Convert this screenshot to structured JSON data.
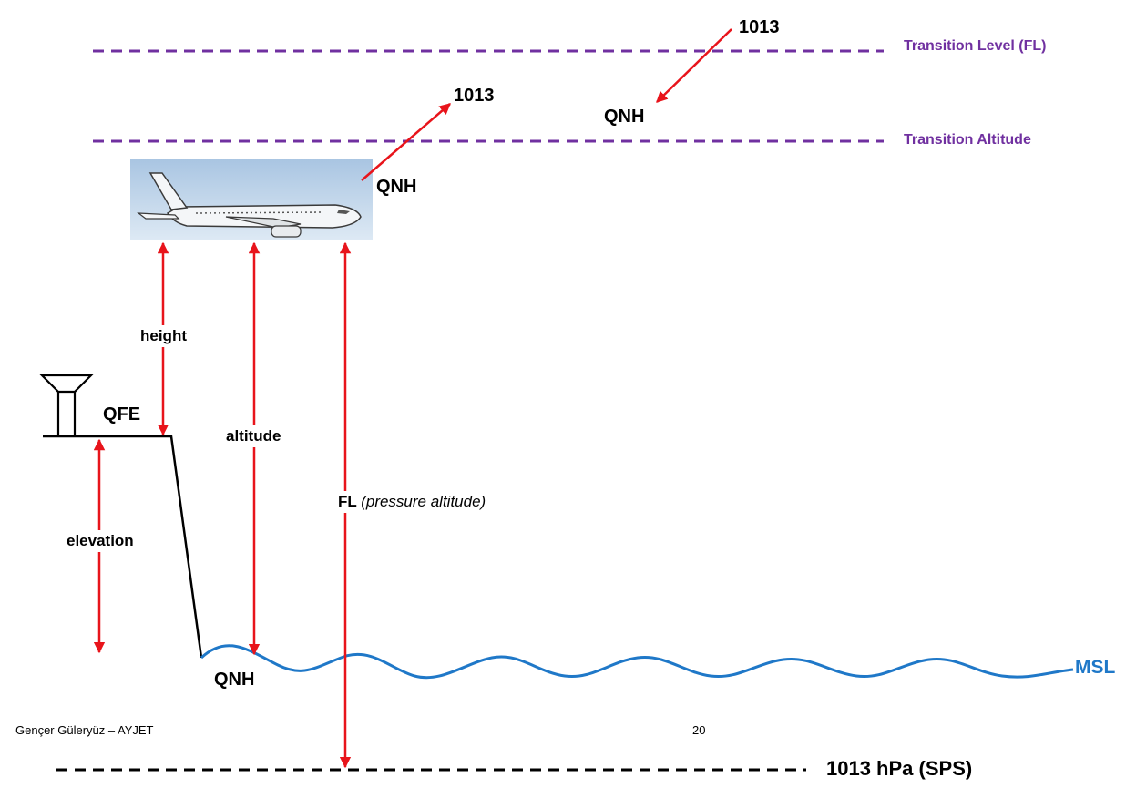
{
  "labels": {
    "transition_level": "Transition Level  (FL)",
    "transition_altitude": "Transition Altitude",
    "upper_1013": "1013",
    "upper_qnh": "QNH",
    "mid_1013": "1013",
    "aircraft_qnh": "QNH",
    "height": "height",
    "qfe": "QFE",
    "altitude": "altitude",
    "elevation": "elevation",
    "fl_abbrev": "FL",
    "fl_desc": "(pressure altitude)",
    "ground_qnh": "QNH",
    "msl": "MSL",
    "sps": "1013 hPa (SPS)"
  },
  "footer": {
    "author": "Gençer Güleryüz  –  AYJET",
    "page_number": "20"
  },
  "colors": {
    "arrow": "#e8141b",
    "transition_lines": "#7030a0",
    "sea": "#1f78c8",
    "ground": "#000000",
    "sky_top": "#a9c5e2",
    "sky_bottom": "#dde9f4"
  },
  "icons": {
    "aircraft": "airplane-icon",
    "control_tower": "tower-icon"
  }
}
